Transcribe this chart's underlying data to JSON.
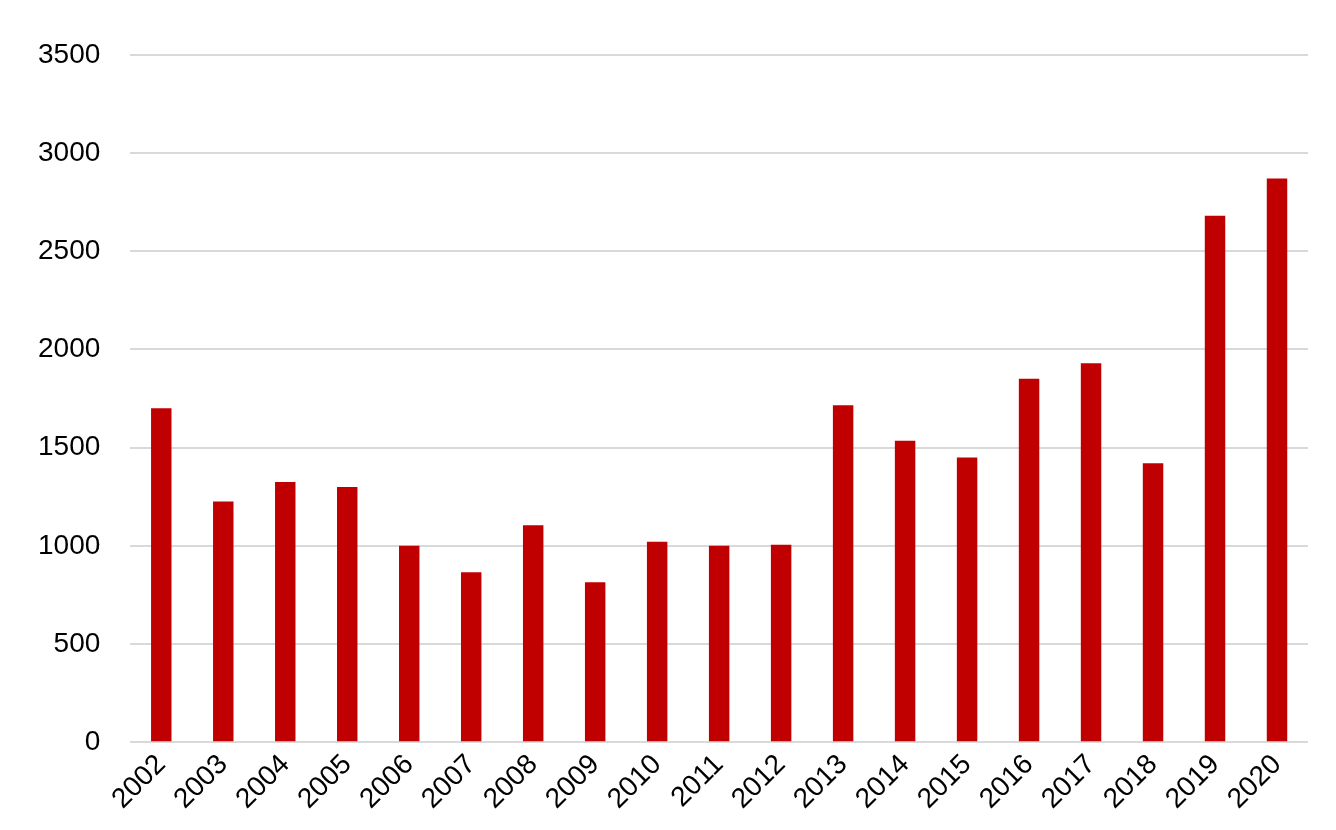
{
  "chart_data": {
    "type": "bar",
    "categories": [
      "2002",
      "2003",
      "2004",
      "2005",
      "2006",
      "2007",
      "2008",
      "2009",
      "2010",
      "2011",
      "2012",
      "2013",
      "2014",
      "2015",
      "2016",
      "2017",
      "2018",
      "2019",
      "2020"
    ],
    "values": [
      1700,
      1225,
      1325,
      1300,
      1000,
      865,
      1105,
      815,
      1020,
      1000,
      1005,
      1715,
      1535,
      1450,
      1850,
      1930,
      1420,
      2680,
      2870
    ],
    "color": "#c00000",
    "ylim": [
      0,
      3500
    ],
    "yticks": [
      0,
      500,
      1000,
      1500,
      2000,
      2500,
      3000,
      3500
    ],
    "grid": "y"
  }
}
